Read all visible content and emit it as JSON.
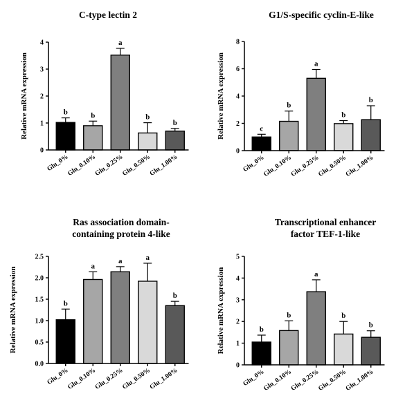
{
  "chart_data": [
    {
      "type": "bar",
      "title": [
        "C-type lectin 2"
      ],
      "ylabel": "Relative mRNA expression",
      "categories": [
        "Glu_0%",
        "Glu_0.10%",
        "Glu_0.25%",
        "Glu_0.50%",
        "Glu_1.00%"
      ],
      "values": [
        1.02,
        0.9,
        3.52,
        0.63,
        0.7
      ],
      "errors": [
        0.17,
        0.17,
        0.25,
        0.38,
        0.1
      ],
      "letters": [
        "b",
        "b",
        "a",
        "b",
        "b"
      ],
      "colors": [
        "#000000",
        "#a6a6a6",
        "#7f7f7f",
        "#d9d9d9",
        "#595959"
      ],
      "ylim": [
        0,
        4
      ],
      "yticks": [
        "0",
        "1",
        "2",
        "3",
        "4"
      ]
    },
    {
      "type": "bar",
      "title": [
        "G1/S-specific cyclin-E-like"
      ],
      "ylabel": "Relative mRNA expression",
      "categories": [
        "Glu_0%",
        "Glu_0.10%",
        "Glu_0.25%",
        "Glu_0.50%",
        "Glu_1.00%"
      ],
      "values": [
        1.0,
        2.15,
        5.3,
        1.98,
        2.27
      ],
      "errors": [
        0.2,
        0.75,
        0.65,
        0.22,
        1.02
      ],
      "letters": [
        "c",
        "b",
        "a",
        "b",
        "b"
      ],
      "colors": [
        "#000000",
        "#a6a6a6",
        "#7f7f7f",
        "#d9d9d9",
        "#595959"
      ],
      "ylim": [
        0,
        8
      ],
      "yticks": [
        "0",
        "2",
        "4",
        "6",
        "8"
      ]
    },
    {
      "type": "bar",
      "title": [
        "Ras association domain-",
        "containing protein 4-like"
      ],
      "ylabel": "Relative mRNA expression",
      "categories": [
        "Glu_0%",
        "Glu_0.10%",
        "Glu_0.25%",
        "Glu_0.50%",
        "Glu_1.00%"
      ],
      "values": [
        1.02,
        1.96,
        2.14,
        1.92,
        1.35
      ],
      "errors": [
        0.25,
        0.18,
        0.12,
        0.42,
        0.1
      ],
      "letters": [
        "b",
        "a",
        "a",
        "a",
        "b"
      ],
      "colors": [
        "#000000",
        "#a6a6a6",
        "#7f7f7f",
        "#d9d9d9",
        "#595959"
      ],
      "ylim": [
        0,
        2.5
      ],
      "yticks": [
        "0.0",
        "0.5",
        "1.0",
        "1.5",
        "2.0",
        "2.5"
      ]
    },
    {
      "type": "bar",
      "title": [
        "Transcriptional enhancer",
        "factor TEF-1-like"
      ],
      "ylabel": "Relative mRNA expression",
      "categories": [
        "Glu_0%",
        "Glu_0.10%",
        "Glu_0.25%",
        "Glu_0.50%",
        "Glu_1.00%"
      ],
      "values": [
        1.05,
        1.58,
        3.37,
        1.42,
        1.27
      ],
      "errors": [
        0.32,
        0.45,
        0.55,
        0.58,
        0.3
      ],
      "letters": [
        "b",
        "b",
        "a",
        "b",
        "b"
      ],
      "colors": [
        "#000000",
        "#a6a6a6",
        "#7f7f7f",
        "#d9d9d9",
        "#595959"
      ],
      "ylim": [
        0,
        5
      ],
      "yticks": [
        "0",
        "1",
        "2",
        "3",
        "4",
        "5"
      ]
    }
  ]
}
